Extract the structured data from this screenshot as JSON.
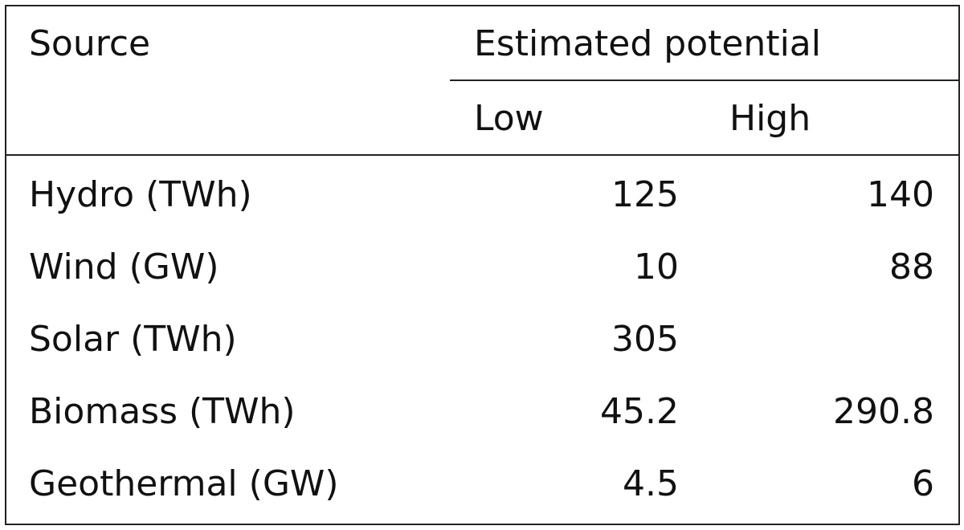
{
  "header": {
    "source": "Source",
    "group": "Estimated potential",
    "columns": [
      "Low",
      "High"
    ]
  },
  "table": {
    "rows": [
      [
        "Hydro (TWh)",
        125,
        140
      ],
      [
        "Wind (GW)",
        10,
        88
      ],
      [
        "Solar (TWh)",
        305,
        null
      ],
      [
        "Biomass (TWh)",
        45.2,
        290.8
      ],
      [
        "Geothermal (GW)",
        4.5,
        6
      ]
    ]
  }
}
